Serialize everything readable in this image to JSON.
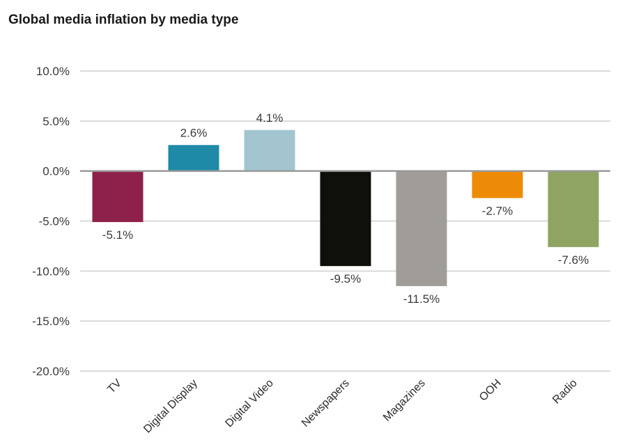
{
  "chart_data": {
    "type": "bar",
    "title": "Global media inflation by media type",
    "xlabel": "",
    "ylabel": "",
    "ylim": [
      -20,
      10
    ],
    "yticks": [
      10,
      5,
      0,
      -5,
      -10,
      -15,
      -20
    ],
    "ytick_labels": [
      "10.0%",
      "5.0%",
      "0.0%",
      "-5.0%",
      "-10.0%",
      "-15.0%",
      "-20.0%"
    ],
    "grid": true,
    "legend": "none",
    "categories": [
      "TV",
      "Digital Display",
      "Digital Video",
      "Newspapers",
      "Magazines",
      "OOH",
      "Radio"
    ],
    "values": [
      -5.1,
      2.6,
      4.1,
      -9.5,
      -11.5,
      -2.7,
      -7.6
    ],
    "data_labels": [
      "-5.1%",
      "2.6%",
      "4.1%",
      "-9.5%",
      "-11.5%",
      "-2.7%",
      "-7.6%"
    ],
    "colors": [
      "#8e2149",
      "#1e8aa8",
      "#a2c5d0",
      "#0f0f0b",
      "#a09d98",
      "#ed8b07",
      "#8fa463"
    ],
    "gridline_color": "#d9d9d9",
    "zero_line_color": "#9a9a9a"
  }
}
